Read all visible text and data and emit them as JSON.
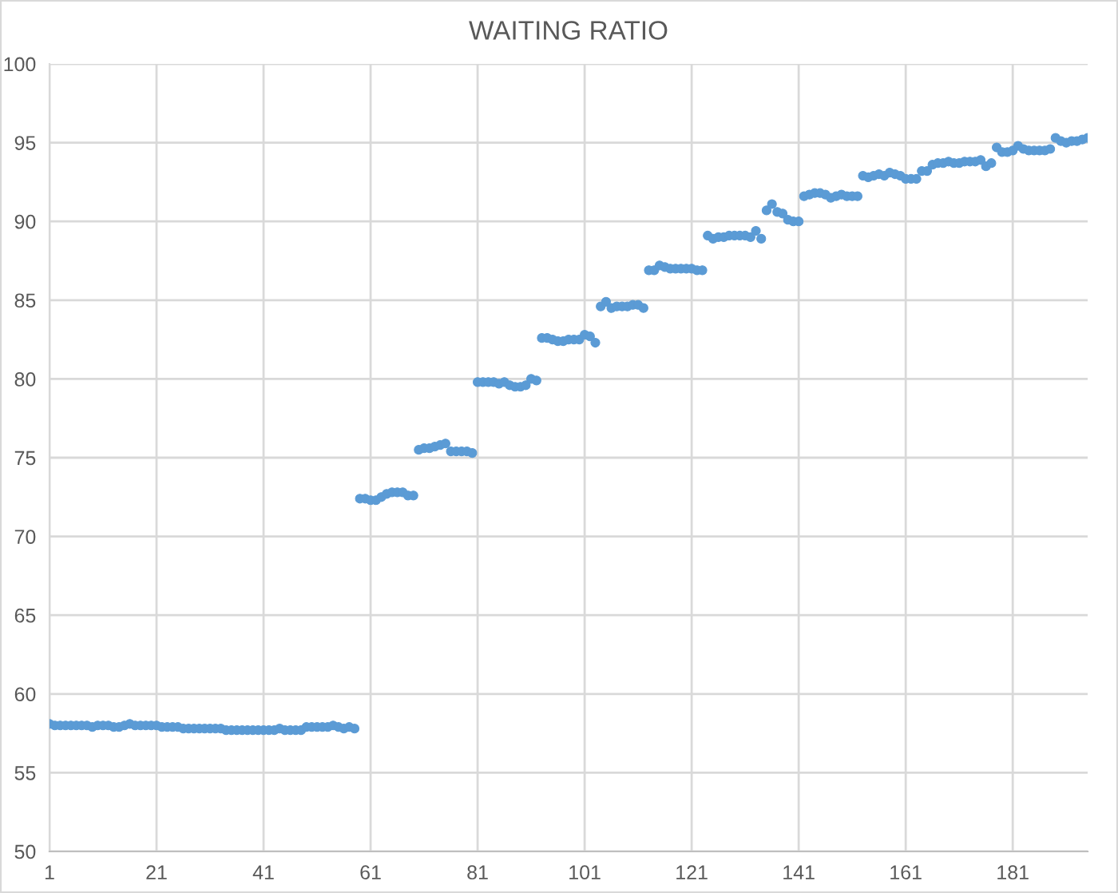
{
  "chart_data": {
    "type": "scatter",
    "title": "WAITING RATIO",
    "x": [
      1,
      2,
      3,
      4,
      5,
      6,
      7,
      8,
      9,
      10,
      11,
      12,
      13,
      14,
      15,
      16,
      17,
      18,
      19,
      20,
      21,
      22,
      23,
      24,
      25,
      26,
      27,
      28,
      29,
      30,
      31,
      32,
      33,
      34,
      35,
      36,
      37,
      38,
      39,
      40,
      41,
      42,
      43,
      44,
      45,
      46,
      47,
      48,
      49,
      50,
      51,
      52,
      53,
      54,
      55,
      56,
      57,
      58,
      59,
      60,
      61,
      62,
      63,
      64,
      65,
      66,
      67,
      68,
      69,
      70,
      71,
      72,
      73,
      74,
      75,
      76,
      77,
      78,
      79,
      80,
      81,
      82,
      83,
      84,
      85,
      86,
      87,
      88,
      89,
      90,
      91,
      92,
      93,
      94,
      95,
      96,
      97,
      98,
      99,
      100,
      101,
      102,
      103,
      104,
      105,
      106,
      107,
      108,
      109,
      110,
      111,
      112,
      113,
      114,
      115,
      116,
      117,
      118,
      119,
      120,
      121,
      122,
      123,
      124,
      125,
      126,
      127,
      128,
      129,
      130,
      131,
      132,
      133,
      134,
      135,
      136,
      137,
      138,
      139,
      140,
      141,
      142,
      143,
      144,
      145,
      146,
      147,
      148,
      149,
      150,
      151,
      152,
      153,
      154,
      155,
      156,
      157,
      158,
      159,
      160,
      161,
      162,
      163,
      164,
      165,
      166,
      167,
      168,
      169,
      170,
      171,
      172,
      173,
      174,
      175,
      176,
      177,
      178,
      179,
      180,
      181,
      182,
      183,
      184,
      185,
      186,
      187,
      188,
      189,
      190,
      191,
      192,
      193,
      194,
      195
    ],
    "series": [
      {
        "color": "#5b9bd5",
        "values": [
          58.1,
          58.0,
          58.0,
          58.0,
          58.0,
          58.0,
          58.0,
          58.0,
          57.9,
          58.0,
          58.0,
          58.0,
          57.9,
          57.9,
          58.0,
          58.1,
          58.0,
          58.0,
          58.0,
          58.0,
          58.0,
          57.9,
          57.9,
          57.9,
          57.9,
          57.8,
          57.8,
          57.8,
          57.8,
          57.8,
          57.8,
          57.8,
          57.8,
          57.7,
          57.7,
          57.7,
          57.7,
          57.7,
          57.7,
          57.7,
          57.7,
          57.7,
          57.7,
          57.8,
          57.7,
          57.7,
          57.7,
          57.7,
          57.9,
          57.9,
          57.9,
          57.9,
          57.9,
          58.0,
          57.9,
          57.8,
          57.9,
          57.8,
          72.4,
          72.4,
          72.3,
          72.3,
          72.5,
          72.7,
          72.8,
          72.8,
          72.8,
          72.6,
          72.6,
          75.5,
          75.6,
          75.6,
          75.7,
          75.8,
          75.9,
          75.4,
          75.4,
          75.4,
          75.4,
          75.3,
          79.8,
          79.8,
          79.8,
          79.8,
          79.7,
          79.8,
          79.6,
          79.5,
          79.5,
          79.6,
          80.0,
          79.9,
          82.6,
          82.6,
          82.5,
          82.4,
          82.4,
          82.5,
          82.5,
          82.5,
          82.8,
          82.7,
          82.3,
          84.6,
          84.9,
          84.5,
          84.6,
          84.6,
          84.6,
          84.7,
          84.7,
          84.5,
          86.9,
          86.9,
          87.2,
          87.1,
          87.0,
          87.0,
          87.0,
          87.0,
          87.0,
          86.9,
          86.9,
          89.1,
          88.9,
          89.0,
          89.0,
          89.1,
          89.1,
          89.1,
          89.1,
          89.0,
          89.4,
          88.9,
          90.7,
          91.1,
          90.6,
          90.5,
          90.1,
          90.0,
          90.0,
          91.6,
          91.7,
          91.8,
          91.8,
          91.7,
          91.5,
          91.6,
          91.7,
          91.6,
          91.6,
          91.6,
          92.9,
          92.8,
          92.9,
          93.0,
          92.9,
          93.1,
          93.0,
          92.9,
          92.7,
          92.7,
          92.7,
          93.2,
          93.2,
          93.6,
          93.7,
          93.7,
          93.8,
          93.7,
          93.7,
          93.8,
          93.8,
          93.8,
          93.9,
          93.5,
          93.7,
          94.7,
          94.4,
          94.4,
          94.5,
          94.8,
          94.6,
          94.5,
          94.5,
          94.5,
          94.5,
          94.6,
          95.3,
          95.1,
          95.0,
          95.1,
          95.1,
          95.2,
          95.3
        ]
      }
    ],
    "xlim": [
      1,
      195
    ],
    "xticks": [
      1,
      21,
      41,
      61,
      81,
      101,
      121,
      141,
      161,
      181
    ],
    "ylim": [
      50,
      100
    ],
    "yticks": [
      50,
      55,
      60,
      65,
      70,
      75,
      80,
      85,
      90,
      95,
      100
    ],
    "grid": true,
    "marker": "circle"
  }
}
